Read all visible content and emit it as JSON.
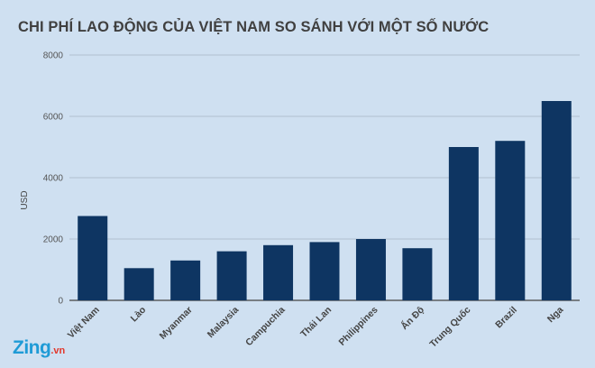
{
  "title": "CHI PHÍ LAO ĐỘNG CỦA VIỆT NAM SO SÁNH VỚI MỘT SỐ NƯỚC",
  "logo": {
    "main": "Zing",
    "suffix": ".vn"
  },
  "chart_data": {
    "type": "bar",
    "title": "CHI PHÍ LAO ĐỘNG CỦA VIỆT NAM SO SÁNH VỚI MỘT SỐ NƯỚC",
    "ylabel": "USD",
    "xlabel": "",
    "ylim": [
      0,
      8000
    ],
    "yticks": [
      0,
      2000,
      4000,
      6000,
      8000
    ],
    "grid": true,
    "categories": [
      "Việt Nam",
      "Lào",
      "Myanmar",
      "Malaysia",
      "Campuchia",
      "Thái Lan",
      "Philippines",
      "Ấn Độ",
      "Trung Quốc",
      "Brazil",
      "Nga"
    ],
    "values": [
      2750,
      1050,
      1300,
      1600,
      1800,
      1900,
      2000,
      1700,
      5000,
      5200,
      6500
    ],
    "bar_color": "#0e3562"
  }
}
